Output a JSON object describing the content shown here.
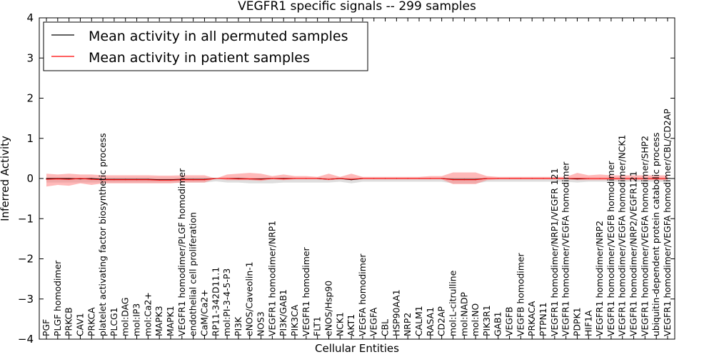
{
  "chart_data": {
    "type": "line",
    "title": "VEGFR1 specific signals -- 299 samples",
    "xlabel": "Cellular Entities",
    "ylabel": "Inferred Activity",
    "ylim": [
      -4,
      4
    ],
    "yticks": [
      -4,
      -3,
      -2,
      -1,
      0,
      1,
      2,
      3,
      4
    ],
    "ytick_labels": [
      "−4",
      "−3",
      "−2",
      "−1",
      "0",
      "1",
      "2",
      "3",
      "4"
    ],
    "legend": {
      "placement": "top-left"
    },
    "colors": {
      "permuted": "#000000",
      "patient": "#ff0000",
      "permuted_band": "#c8c8c8",
      "patient_band": "#ff7f7f"
    },
    "categories": [
      "PGF",
      "PLGF homodimer",
      "PRKCB",
      "CAV1",
      "PRKCA",
      "platelet activating factor biosynthetic process",
      "PLCG1",
      "mol:DAG",
      "mol:IP3",
      "mol:Ca2+",
      "MAPK3",
      "MAPK1",
      "VEGFR1 homodimer/PLGF homodimer",
      "endothelial cell proliferation",
      "CaM/Ca2+",
      "RP11-342D11.1",
      "mol:PI-3-4-5-P3",
      "PI3K",
      "eNOS/Caveolin-1",
      "NOS3",
      "VEGFR1 homodimer/NRP1",
      "PI3K/GAB1",
      "PIK3CA",
      "VEGFR1 homodimer",
      "FLT1",
      "eNOS/Hsp90",
      "NCK1",
      "AKT1",
      "VEGFA homodimer",
      "VEGFA",
      "CBL",
      "HSP90AA1",
      "NRP2",
      "CALM1",
      "RASA1",
      "CD2AP",
      "mol:L-citrulline",
      "mol:NADP",
      "mol:NO",
      "PIK3R1",
      "GAB1",
      "VEGFB",
      "VEGFB homodimer",
      "PRKACA",
      "PTPN11",
      "VEGFR1 homodimer/NRP1/VEGFR 121",
      "VEGFR1 homodimer/VEGFA homodimer",
      "PDPK1",
      "HIF1A",
      "VEGFR1 homodimer/NRP2",
      "VEGFR1 homodimer/VEGFB homodimer",
      "VEGFR1 homodimer/VEGFA homodimer/NCK1",
      "VEGFR1 homodimer/NRP2/VEGFR121",
      "VEGFR1 homodimer/VEGFA homodimer/SHP2",
      "ubiquitin-dependent protein catabolic process",
      "VEGFR1 homodimer/VEGFA homodimer/CBL/CD2AP"
    ],
    "series": [
      {
        "name": "Mean activity in all permuted samples",
        "color": "#000000",
        "values": [
          0.0,
          0.0,
          0.0,
          -0.01,
          0.0,
          -0.02,
          -0.02,
          -0.02,
          -0.02,
          -0.02,
          -0.03,
          -0.03,
          -0.02,
          -0.02,
          -0.02,
          0.0,
          0.0,
          0.0,
          -0.01,
          -0.01,
          0.0,
          0.0,
          0.0,
          0.0,
          0.0,
          -0.02,
          0.0,
          -0.03,
          0.0,
          0.0,
          0.0,
          0.0,
          0.0,
          0.0,
          0.0,
          0.0,
          -0.02,
          -0.02,
          -0.02,
          0.0,
          0.0,
          0.0,
          0.0,
          0.0,
          0.0,
          0.0,
          0.0,
          -0.01,
          0.0,
          0.0,
          0.0,
          0.0,
          0.0,
          0.0,
          0.0,
          0.0
        ],
        "band_upper": [
          0.02,
          0.02,
          0.02,
          0.02,
          0.02,
          0.02,
          0.02,
          0.02,
          0.02,
          0.02,
          0.02,
          0.02,
          0.02,
          0.02,
          0.02,
          0.02,
          0.02,
          0.02,
          0.02,
          0.02,
          0.02,
          0.02,
          0.02,
          0.02,
          0.02,
          0.02,
          0.02,
          0.02,
          0.02,
          0.02,
          0.02,
          0.02,
          0.02,
          0.02,
          0.02,
          0.02,
          0.02,
          0.02,
          0.02,
          0.02,
          0.02,
          0.02,
          0.02,
          0.02,
          0.02,
          0.02,
          0.02,
          0.02,
          0.02,
          0.02,
          0.02,
          0.02,
          0.02,
          0.02,
          0.02,
          0.02
        ],
        "band_lower": [
          -0.1,
          -0.1,
          -0.1,
          -0.1,
          -0.1,
          -0.1,
          -0.1,
          -0.1,
          -0.1,
          -0.1,
          -0.1,
          -0.1,
          -0.1,
          -0.1,
          -0.1,
          -0.07,
          -0.1,
          -0.1,
          -0.12,
          -0.12,
          -0.12,
          -0.1,
          -0.1,
          -0.1,
          -0.1,
          -0.1,
          -0.08,
          -0.12,
          -0.08,
          -0.08,
          -0.08,
          -0.08,
          -0.08,
          -0.08,
          -0.08,
          -0.08,
          -0.12,
          -0.12,
          -0.12,
          -0.08,
          -0.08,
          -0.08,
          -0.08,
          -0.08,
          -0.08,
          -0.08,
          -0.08,
          -0.1,
          -0.08,
          -0.08,
          -0.08,
          -0.08,
          -0.08,
          -0.08,
          -0.08,
          -0.08
        ]
      },
      {
        "name": "Mean activity in patient samples",
        "color": "#ff0000",
        "values": [
          -0.02,
          -0.01,
          -0.02,
          0.0,
          -0.02,
          -0.03,
          -0.03,
          -0.03,
          -0.03,
          -0.03,
          -0.04,
          -0.04,
          -0.03,
          -0.03,
          -0.03,
          0.0,
          0.0,
          -0.01,
          -0.01,
          -0.02,
          0.0,
          -0.01,
          0.0,
          0.0,
          0.0,
          -0.02,
          0.0,
          -0.02,
          0.0,
          0.0,
          0.0,
          0.0,
          0.0,
          0.0,
          0.0,
          0.0,
          -0.03,
          -0.03,
          -0.03,
          0.0,
          0.0,
          0.0,
          0.0,
          0.0,
          0.0,
          0.0,
          0.0,
          0.0,
          0.0,
          0.0,
          0.0,
          0.0,
          0.0,
          0.0,
          0.0,
          0.0
        ],
        "band_upper": [
          0.12,
          0.1,
          0.12,
          0.1,
          0.1,
          0.08,
          0.08,
          0.08,
          0.08,
          0.08,
          0.07,
          0.07,
          0.08,
          0.08,
          0.08,
          0.0,
          0.1,
          0.12,
          0.14,
          0.12,
          0.06,
          0.1,
          0.06,
          0.06,
          0.04,
          0.12,
          0.04,
          0.12,
          0.04,
          0.04,
          0.04,
          0.04,
          0.04,
          0.04,
          0.06,
          0.06,
          0.15,
          0.15,
          0.15,
          0.06,
          0.04,
          0.04,
          0.04,
          0.04,
          0.04,
          0.04,
          0.04,
          0.14,
          0.08,
          0.1,
          0.08,
          0.08,
          0.08,
          0.08,
          0.08,
          0.08
        ],
        "band_lower": [
          -0.2,
          -0.16,
          -0.18,
          -0.12,
          -0.16,
          -0.12,
          -0.12,
          -0.12,
          -0.12,
          -0.12,
          -0.12,
          -0.12,
          -0.1,
          -0.1,
          -0.1,
          0.0,
          -0.04,
          -0.04,
          -0.04,
          -0.06,
          -0.02,
          -0.04,
          -0.02,
          -0.02,
          -0.02,
          -0.04,
          -0.02,
          -0.04,
          -0.02,
          -0.02,
          -0.02,
          -0.02,
          -0.02,
          -0.02,
          -0.02,
          -0.02,
          -0.14,
          -0.14,
          -0.14,
          -0.04,
          -0.02,
          -0.02,
          -0.02,
          -0.02,
          -0.02,
          -0.02,
          -0.02,
          -0.04,
          -0.04,
          -0.04,
          -0.04,
          -0.04,
          -0.04,
          -0.04,
          -0.04,
          -0.04
        ]
      }
    ]
  }
}
